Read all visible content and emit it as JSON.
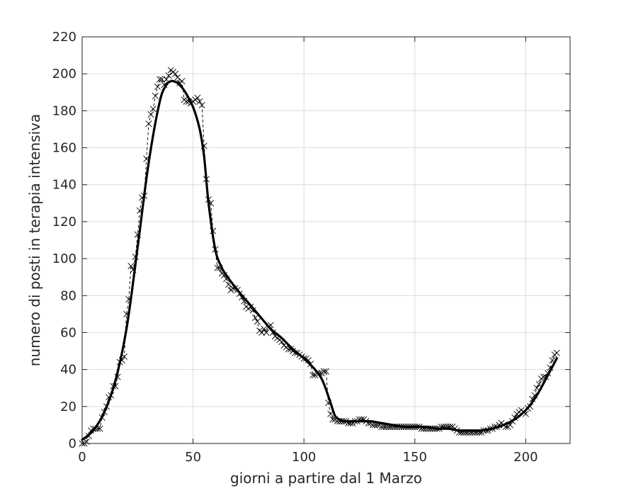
{
  "chart_data": {
    "type": "line",
    "title": "",
    "xlabel": "giorni a partire dal 1 Marzo",
    "ylabel": "numero di posti in terapia intensiva",
    "xlim": [
      0,
      220
    ],
    "ylim": [
      0,
      220
    ],
    "xticks": [
      0,
      50,
      100,
      150,
      200
    ],
    "yticks": [
      0,
      20,
      40,
      60,
      80,
      100,
      120,
      140,
      160,
      180,
      200,
      220
    ],
    "grid": true,
    "legend": "none",
    "colors": {
      "data": "#000000",
      "fit": "#000000",
      "grid": "#dcdcdc",
      "axis": "#262626"
    },
    "series": [
      {
        "marker": "x",
        "linestyle": "dashed",
        "x": [
          0,
          1,
          2,
          3,
          4,
          5,
          6,
          7,
          8,
          9,
          10,
          11,
          12,
          13,
          14,
          15,
          16,
          17,
          18,
          19,
          20,
          21,
          22,
          23,
          24,
          25,
          26,
          27,
          28,
          29,
          30,
          31,
          32,
          33,
          34,
          35,
          36,
          37,
          38,
          39,
          40,
          41,
          42,
          43,
          44,
          45,
          46,
          47,
          48,
          49,
          50,
          51,
          52,
          53,
          54,
          55,
          56,
          57,
          58,
          59,
          60,
          61,
          62,
          63,
          64,
          65,
          66,
          67,
          68,
          69,
          70,
          71,
          72,
          73,
          74,
          75,
          76,
          77,
          78,
          79,
          80,
          81,
          82,
          83,
          84,
          85,
          86,
          87,
          88,
          89,
          90,
          91,
          92,
          93,
          94,
          95,
          96,
          97,
          98,
          99,
          100,
          101,
          102,
          103,
          104,
          105,
          106,
          107,
          108,
          109,
          110,
          111,
          112,
          113,
          114,
          115,
          116,
          117,
          118,
          119,
          120,
          121,
          122,
          123,
          124,
          125,
          126,
          127,
          128,
          129,
          130,
          131,
          132,
          133,
          134,
          135,
          136,
          137,
          138,
          139,
          140,
          141,
          142,
          143,
          144,
          145,
          146,
          147,
          148,
          149,
          150,
          151,
          152,
          153,
          154,
          155,
          156,
          157,
          158,
          159,
          160,
          161,
          162,
          163,
          164,
          165,
          166,
          167,
          168,
          169,
          170,
          171,
          172,
          173,
          174,
          175,
          176,
          177,
          178,
          179,
          180,
          181,
          182,
          183,
          184,
          185,
          186,
          187,
          188,
          189,
          190,
          191,
          192,
          193,
          194,
          195,
          196,
          197,
          198,
          199,
          200,
          201,
          202,
          203,
          204,
          205,
          206,
          207,
          208,
          209,
          210,
          211,
          212,
          213,
          214
        ],
        "values": [
          0,
          0,
          1,
          4,
          7,
          8,
          8,
          8,
          8,
          14,
          17,
          20,
          25,
          26,
          31,
          31,
          36,
          44,
          45,
          47,
          70,
          78,
          96,
          94,
          101,
          113,
          126,
          133,
          134,
          154,
          173,
          178,
          181,
          188,
          193,
          197,
          197,
          194,
          197,
          199,
          202,
          201,
          200,
          198,
          195,
          196,
          186,
          185,
          185,
          184,
          185,
          186,
          187,
          185,
          183,
          161,
          143,
          132,
          130,
          115,
          105,
          95,
          95,
          92,
          91,
          89,
          86,
          83,
          84,
          84,
          83,
          81,
          79,
          77,
          74,
          73,
          74,
          72,
          68,
          66,
          61,
          60,
          62,
          60,
          63,
          64,
          60,
          58,
          57,
          56,
          55,
          53,
          52,
          51,
          51,
          50,
          49,
          49,
          48,
          47,
          46,
          46,
          45,
          43,
          37,
          37,
          38,
          38,
          38,
          39,
          39,
          22,
          16,
          13,
          13,
          12,
          12,
          12,
          12,
          12,
          11,
          11,
          11,
          12,
          12,
          13,
          13,
          13,
          12,
          11,
          11,
          10,
          10,
          10,
          10,
          9,
          9,
          9,
          9,
          9,
          9,
          9,
          9,
          9,
          9,
          9,
          9,
          9,
          9,
          9,
          9,
          9,
          9,
          8,
          8,
          8,
          8,
          8,
          8,
          8,
          8,
          8,
          9,
          9,
          9,
          9,
          9,
          9,
          8,
          7,
          6,
          6,
          6,
          6,
          6,
          6,
          6,
          6,
          6,
          6,
          6,
          7,
          7,
          7,
          8,
          8,
          9,
          9,
          10,
          11,
          10,
          9,
          9,
          10,
          12,
          14,
          16,
          17,
          18,
          17,
          16,
          19,
          20,
          24,
          26,
          30,
          32,
          35,
          36,
          36,
          38,
          41,
          45,
          48,
          49
        ]
      },
      {
        "linestyle": "solid",
        "linewidth": "thick",
        "x": [
          0,
          5,
          10,
          15,
          20,
          25,
          30,
          35,
          38,
          40,
          41,
          43,
          46,
          50,
          53,
          55,
          57,
          60,
          63,
          65,
          70,
          75,
          80,
          85,
          90,
          95,
          100,
          105,
          108,
          110,
          112,
          114,
          116,
          118,
          120,
          125,
          130,
          135,
          140,
          145,
          150,
          155,
          160,
          165,
          170,
          175,
          180,
          185,
          190,
          195,
          200,
          205,
          210,
          214
        ],
        "values": [
          2,
          7,
          17,
          34,
          62,
          106,
          152,
          185,
          194,
          196,
          196,
          195,
          191,
          182,
          170,
          155,
          130,
          105,
          95,
          91,
          83,
          76,
          69,
          62,
          57,
          51,
          46,
          40,
          35,
          29,
          22,
          15,
          13,
          12,
          12,
          12,
          12,
          11,
          10,
          9,
          9,
          9,
          8,
          8,
          7,
          7,
          7,
          8,
          10,
          13,
          18,
          26,
          37,
          46
        ]
      }
    ]
  }
}
